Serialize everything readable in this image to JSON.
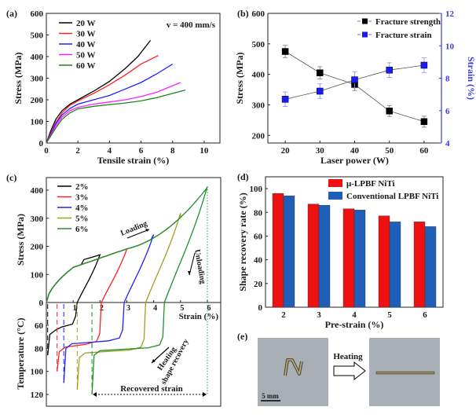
{
  "chart_data": [
    {
      "panel": "(a)",
      "type": "line",
      "title": "",
      "annotation": "v = 400 mm/s",
      "xlabel": "Tensile strain (%)",
      "ylabel": "Stress (MPa)",
      "xlim": [
        0,
        11
      ],
      "ylim": [
        0,
        600
      ],
      "xticks": [
        0,
        2,
        4,
        6,
        8,
        10
      ],
      "yticks": [
        0,
        100,
        200,
        300,
        400,
        500,
        600
      ],
      "legend": "top-left",
      "series": [
        {
          "name": "20 W",
          "color": "#000000",
          "x": [
            0,
            0.3,
            0.6,
            1.0,
            1.5,
            2.0,
            3.0,
            4.0,
            5.0,
            5.8,
            6.6
          ],
          "y": [
            0,
            60,
            110,
            150,
            180,
            200,
            240,
            285,
            345,
            400,
            475
          ]
        },
        {
          "name": "30 W",
          "color": "#ff2020",
          "x": [
            0,
            0.3,
            0.6,
            1.0,
            1.5,
            2.0,
            3.0,
            4.0,
            5.0,
            6.0,
            7.1
          ],
          "y": [
            0,
            50,
            95,
            140,
            175,
            195,
            230,
            270,
            315,
            365,
            405
          ]
        },
        {
          "name": "40 W",
          "color": "#2020ff",
          "x": [
            0,
            0.3,
            0.6,
            1.0,
            1.5,
            2.0,
            3.0,
            4.0,
            5.0,
            6.0,
            7.0,
            8.0
          ],
          "y": [
            0,
            45,
            90,
            130,
            160,
            180,
            200,
            220,
            250,
            280,
            320,
            365
          ]
        },
        {
          "name": "50 W",
          "color": "#ff20ff",
          "x": [
            0,
            0.3,
            0.6,
            1.0,
            1.5,
            2.0,
            3.0,
            4.0,
            5.0,
            6.0,
            7.0,
            8.5
          ],
          "y": [
            0,
            40,
            80,
            120,
            150,
            165,
            180,
            190,
            200,
            215,
            235,
            280
          ]
        },
        {
          "name": "60 W",
          "color": "#208020",
          "x": [
            0,
            0.3,
            0.6,
            1.0,
            1.5,
            2.0,
            3.0,
            4.0,
            5.0,
            6.0,
            7.0,
            8.8
          ],
          "y": [
            0,
            35,
            70,
            110,
            140,
            158,
            170,
            178,
            185,
            195,
            210,
            245
          ]
        }
      ]
    },
    {
      "panel": "(b)",
      "type": "line",
      "xlabel": "Laser power (W)",
      "ylabel": "Stress (MPa)",
      "ylabel_right": "Strain (%)",
      "xlim": [
        15,
        65
      ],
      "ylim": [
        175,
        600
      ],
      "ylim_right": [
        4,
        12
      ],
      "xticks": [
        20,
        30,
        40,
        50,
        60
      ],
      "yticks": [
        200,
        300,
        400,
        500,
        600
      ],
      "yticks_right": [
        4,
        6,
        8,
        10,
        12
      ],
      "right_axis_color": "#3a3ad8",
      "legend": "top-right",
      "categories": [
        20,
        30,
        40,
        50,
        60
      ],
      "series": [
        {
          "name": "Fracture strength",
          "axis": "left",
          "color": "#000000",
          "marker": "square",
          "values": [
            475,
            405,
            367,
            280,
            245
          ],
          "errors": [
            20,
            20,
            20,
            18,
            18
          ]
        },
        {
          "name": "Fracture strain",
          "axis": "right",
          "color": "#1a1aff",
          "marker": "square",
          "values": [
            6.7,
            7.2,
            7.9,
            8.5,
            8.8
          ],
          "errors": [
            0.45,
            0.45,
            0.5,
            0.45,
            0.45
          ]
        }
      ]
    },
    {
      "panel": "(c)",
      "type": "line",
      "xlabel": "Strain (%)",
      "ylabel": "Stress (MPa)",
      "ylabel_lower": "Temperature (°C)",
      "xlim": [
        0,
        6.5
      ],
      "ylim": [
        0,
        430
      ],
      "ylim_lower": [
        40,
        130
      ],
      "xticks": [
        1,
        2,
        3,
        4,
        5,
        6
      ],
      "yticks": [
        0,
        100,
        200,
        300,
        400
      ],
      "yticks_lower": [
        60,
        80,
        100,
        120
      ],
      "legend": "top-left",
      "annotations": [
        "Loading",
        "Unloading",
        "Heating",
        "shape recovery",
        "Recovered strain"
      ],
      "series": [
        {
          "name": "2%",
          "color": "#000000",
          "peak_strain": 2,
          "peak_stress": 170,
          "residual_strain": 1.15,
          "recovered_to": 0.05,
          "recovery_temp": 60
        },
        {
          "name": "3%",
          "color": "#ff2020",
          "peak_strain": 3,
          "peak_stress": 190,
          "residual_strain": 2.05,
          "recovered_to": 0.4,
          "recovery_temp": 75
        },
        {
          "name": "4%",
          "color": "#2020ff",
          "peak_strain": 4,
          "peak_stress": 242,
          "residual_strain": 2.9,
          "recovered_to": 0.65,
          "recovery_temp": 72
        },
        {
          "name": "5%",
          "color": "#a0a020",
          "peak_strain": 5,
          "peak_stress": 318,
          "residual_strain": 3.7,
          "recovered_to": 1.15,
          "recovery_temp": 80
        },
        {
          "name": "6%",
          "color": "#20902a",
          "peak_strain": 6,
          "peak_stress": 413,
          "residual_strain": 4.4,
          "recovered_to": 1.7,
          "recovery_temp": 78
        }
      ]
    },
    {
      "panel": "(d)",
      "type": "bar",
      "xlabel": "Pre-strain (%)",
      "ylabel": "Shape recovery rate (%)",
      "ylim": [
        0,
        110
      ],
      "yticks": [
        0,
        20,
        40,
        60,
        80,
        100
      ],
      "categories": [
        "2",
        "3",
        "4",
        "5",
        "6"
      ],
      "legend": "top-right",
      "series": [
        {
          "name": "μ-LPBF NiTi",
          "color": "#ee1111",
          "values": [
            96,
            87,
            83,
            77,
            72
          ]
        },
        {
          "name": "Conventional LPBF NiTi",
          "color": "#1f5fb8",
          "values": [
            94,
            86,
            82,
            72,
            68
          ]
        }
      ]
    }
  ],
  "panel_e": {
    "label": "(e)",
    "scale_bar": "5 mm",
    "arrow_label": "Heating"
  }
}
